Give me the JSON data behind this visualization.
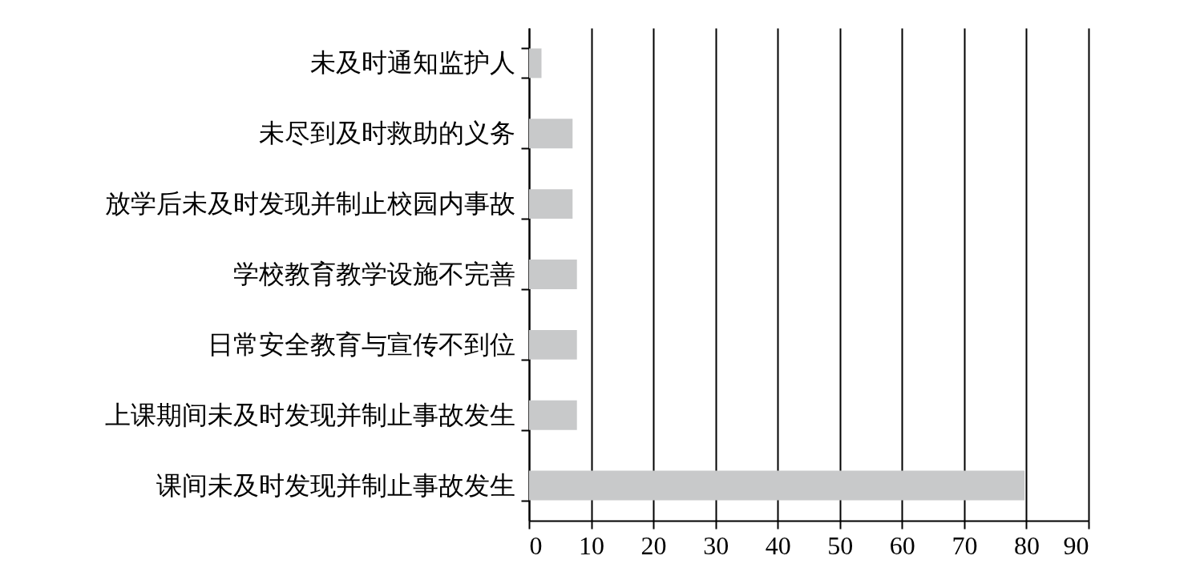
{
  "chart_data": {
    "type": "bar",
    "orientation": "horizontal",
    "categories": [
      "未及时通知监护人",
      "未尽到及时救助的义务",
      "放学后未及时发现并制止校园内事故",
      "学校教育教学设施不完善",
      "日常安全教育与宣传不到位",
      "上课期间未及时发现并制止事故发生",
      "课间未及时发现并制止事故发生"
    ],
    "values": [
      2,
      7,
      7,
      7.7,
      7.7,
      7.7,
      79.7
    ],
    "color": "#c8c9ca",
    "xlim": [
      0,
      90
    ],
    "xticks": [
      0,
      10,
      20,
      30,
      40,
      50,
      60,
      70,
      80,
      90
    ],
    "grid": "x"
  }
}
